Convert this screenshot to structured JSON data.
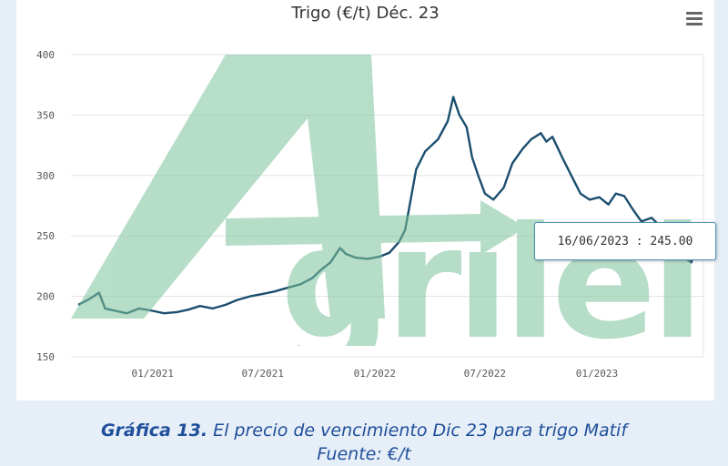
{
  "title": "Trigo (€/t) Déc. 23",
  "watermark_text": "Agritel",
  "tooltip": {
    "text": "16/06/2023 : 245.00"
  },
  "caption": {
    "bold": "Gráfica 13.",
    "text": " El precio de vencimiento Dic 23 para trigo Matif",
    "line2": "Fuente: €/t"
  },
  "colors": {
    "line": "#1b4e6e",
    "watermark": "#7cc39a",
    "caption": "#1f4e9a",
    "background": "#e6eff8"
  },
  "chart_data": {
    "type": "line",
    "title": "Trigo (€/t) Déc. 23",
    "xlabel": "",
    "ylabel": "",
    "ylim": [
      150,
      400
    ],
    "yticks": [
      150,
      200,
      250,
      300,
      350,
      400
    ],
    "xticks": [
      "01/2021",
      "07/2021",
      "01/2022",
      "07/2022",
      "01/2023"
    ],
    "grid": true,
    "series": [
      {
        "name": "",
        "points": [
          [
            "2020-09-01",
            193
          ],
          [
            "2020-09-20",
            198
          ],
          [
            "2020-10-05",
            203
          ],
          [
            "2020-10-15",
            190
          ],
          [
            "2020-11-01",
            188
          ],
          [
            "2020-11-20",
            186
          ],
          [
            "2020-12-10",
            190
          ],
          [
            "2021-01-01",
            188
          ],
          [
            "2021-01-20",
            186
          ],
          [
            "2021-02-10",
            187
          ],
          [
            "2021-03-01",
            189
          ],
          [
            "2021-03-20",
            192
          ],
          [
            "2021-04-10",
            190
          ],
          [
            "2021-05-01",
            193
          ],
          [
            "2021-05-20",
            197
          ],
          [
            "2021-06-10",
            200
          ],
          [
            "2021-07-01",
            202
          ],
          [
            "2021-07-20",
            204
          ],
          [
            "2021-08-10",
            207
          ],
          [
            "2021-09-01",
            210
          ],
          [
            "2021-09-20",
            215
          ],
          [
            "2021-10-05",
            222
          ],
          [
            "2021-10-20",
            228
          ],
          [
            "2021-11-05",
            240
          ],
          [
            "2021-11-15",
            235
          ],
          [
            "2021-12-01",
            232
          ],
          [
            "2021-12-20",
            231
          ],
          [
            "2022-01-10",
            233
          ],
          [
            "2022-01-25",
            236
          ],
          [
            "2022-02-10",
            245
          ],
          [
            "2022-02-20",
            255
          ],
          [
            "2022-03-01",
            280
          ],
          [
            "2022-03-10",
            305
          ],
          [
            "2022-03-25",
            320
          ],
          [
            "2022-04-15",
            330
          ],
          [
            "2022-05-01",
            345
          ],
          [
            "2022-05-10",
            365
          ],
          [
            "2022-05-20",
            350
          ],
          [
            "2022-06-01",
            340
          ],
          [
            "2022-06-10",
            315
          ],
          [
            "2022-06-20",
            300
          ],
          [
            "2022-07-01",
            285
          ],
          [
            "2022-07-15",
            280
          ],
          [
            "2022-08-01",
            290
          ],
          [
            "2022-08-15",
            310
          ],
          [
            "2022-09-01",
            322
          ],
          [
            "2022-09-15",
            330
          ],
          [
            "2022-10-01",
            335
          ],
          [
            "2022-10-10",
            328
          ],
          [
            "2022-10-20",
            332
          ],
          [
            "2022-11-05",
            315
          ],
          [
            "2022-11-20",
            300
          ],
          [
            "2022-12-05",
            285
          ],
          [
            "2022-12-20",
            280
          ],
          [
            "2023-01-05",
            282
          ],
          [
            "2023-01-20",
            276
          ],
          [
            "2023-02-01",
            285
          ],
          [
            "2023-02-15",
            283
          ],
          [
            "2023-03-01",
            272
          ],
          [
            "2023-03-15",
            262
          ],
          [
            "2023-04-01",
            265
          ],
          [
            "2023-04-15",
            258
          ],
          [
            "2023-05-01",
            250
          ],
          [
            "2023-05-15",
            240
          ],
          [
            "2023-05-25",
            232
          ],
          [
            "2023-06-05",
            228
          ],
          [
            "2023-06-16",
            245
          ]
        ]
      }
    ]
  }
}
